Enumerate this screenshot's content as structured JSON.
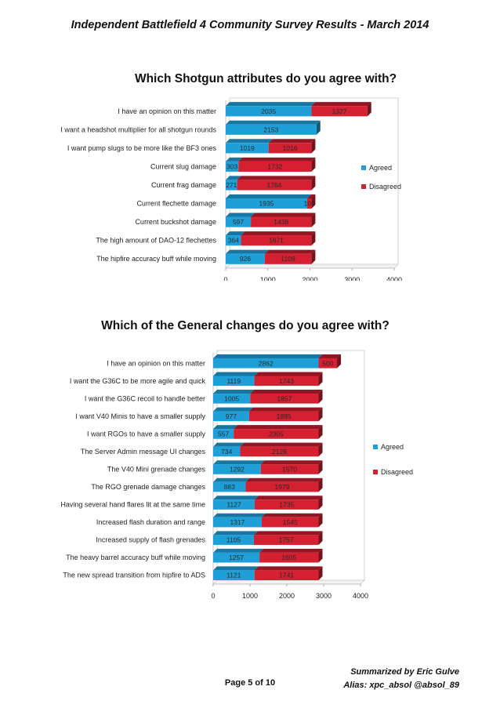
{
  "header": {
    "title": "Independent Battlefield 4 Community Survey Results - March 2014"
  },
  "footer": {
    "page": "Page 5 of 10",
    "summarized_by": "Summarized by Eric Gulve",
    "alias": "Alias: xpc_absol @absol_89"
  },
  "colors": {
    "agreed": "#1E9FD8",
    "disagreed": "#D42030"
  },
  "chart_data": [
    {
      "type": "bar",
      "orientation": "horizontal",
      "stacked": true,
      "title": "Which Shotgun attributes do you agree with?",
      "categories": [
        "I have an opinion on this matter",
        "I want a headshot multiplier for all shotgun rounds",
        "I want pump slugs to be more like the BF3 ones",
        "Current slug damage",
        "Current frag damage",
        "Current flechette damage",
        "Current buckshot damage",
        "The high amount of DAO-12 flechettes",
        "The hipfire accuracy buff while moving"
      ],
      "series": [
        {
          "name": "Agreed",
          "values": [
            2035,
            2153,
            1019,
            303,
            271,
            1935,
            597,
            364,
            926
          ]
        },
        {
          "name": "Disagreed",
          "values": [
            1327,
            null,
            1016,
            1732,
            1764,
            100,
            1438,
            1671,
            1109
          ]
        }
      ],
      "xlim": [
        0,
        4000
      ],
      "xticks": [
        "0",
        "1000",
        "2000",
        "3000",
        "4000"
      ],
      "legend": "right"
    },
    {
      "type": "bar",
      "orientation": "horizontal",
      "stacked": true,
      "title": "Which of the General changes do you agree with?",
      "categories": [
        "I have an opinion on this matter",
        "I want the G36C to be more agile and quick",
        "I want the G36C recoil to handle better",
        "I want V40 Minis to have a smaller supply",
        "I want RGOs to have a smaller supply",
        "The Server Admin message UI changes",
        "The V40 Mini grenade changes",
        "The RGO grenade damage changes",
        "Having several hand flares lit at the same time",
        "Increased flash duration and range",
        "Increased supply of flash grenades",
        "The heavy barrel accuracy buff while moving",
        "The new spread transition from hipfire to ADS"
      ],
      "series": [
        {
          "name": "Agreed",
          "values": [
            2862,
            1119,
            1005,
            977,
            557,
            734,
            1292,
            883,
            1127,
            1317,
            1105,
            1257,
            1121
          ]
        },
        {
          "name": "Disagreed",
          "values": [
            500,
            1743,
            1857,
            1885,
            2305,
            2128,
            1570,
            1979,
            1735,
            1545,
            1757,
            1605,
            1741
          ]
        }
      ],
      "xlim": [
        0,
        4000
      ],
      "xticks": [
        "0",
        "1000",
        "2000",
        "3000",
        "4000"
      ],
      "legend": "right"
    }
  ]
}
